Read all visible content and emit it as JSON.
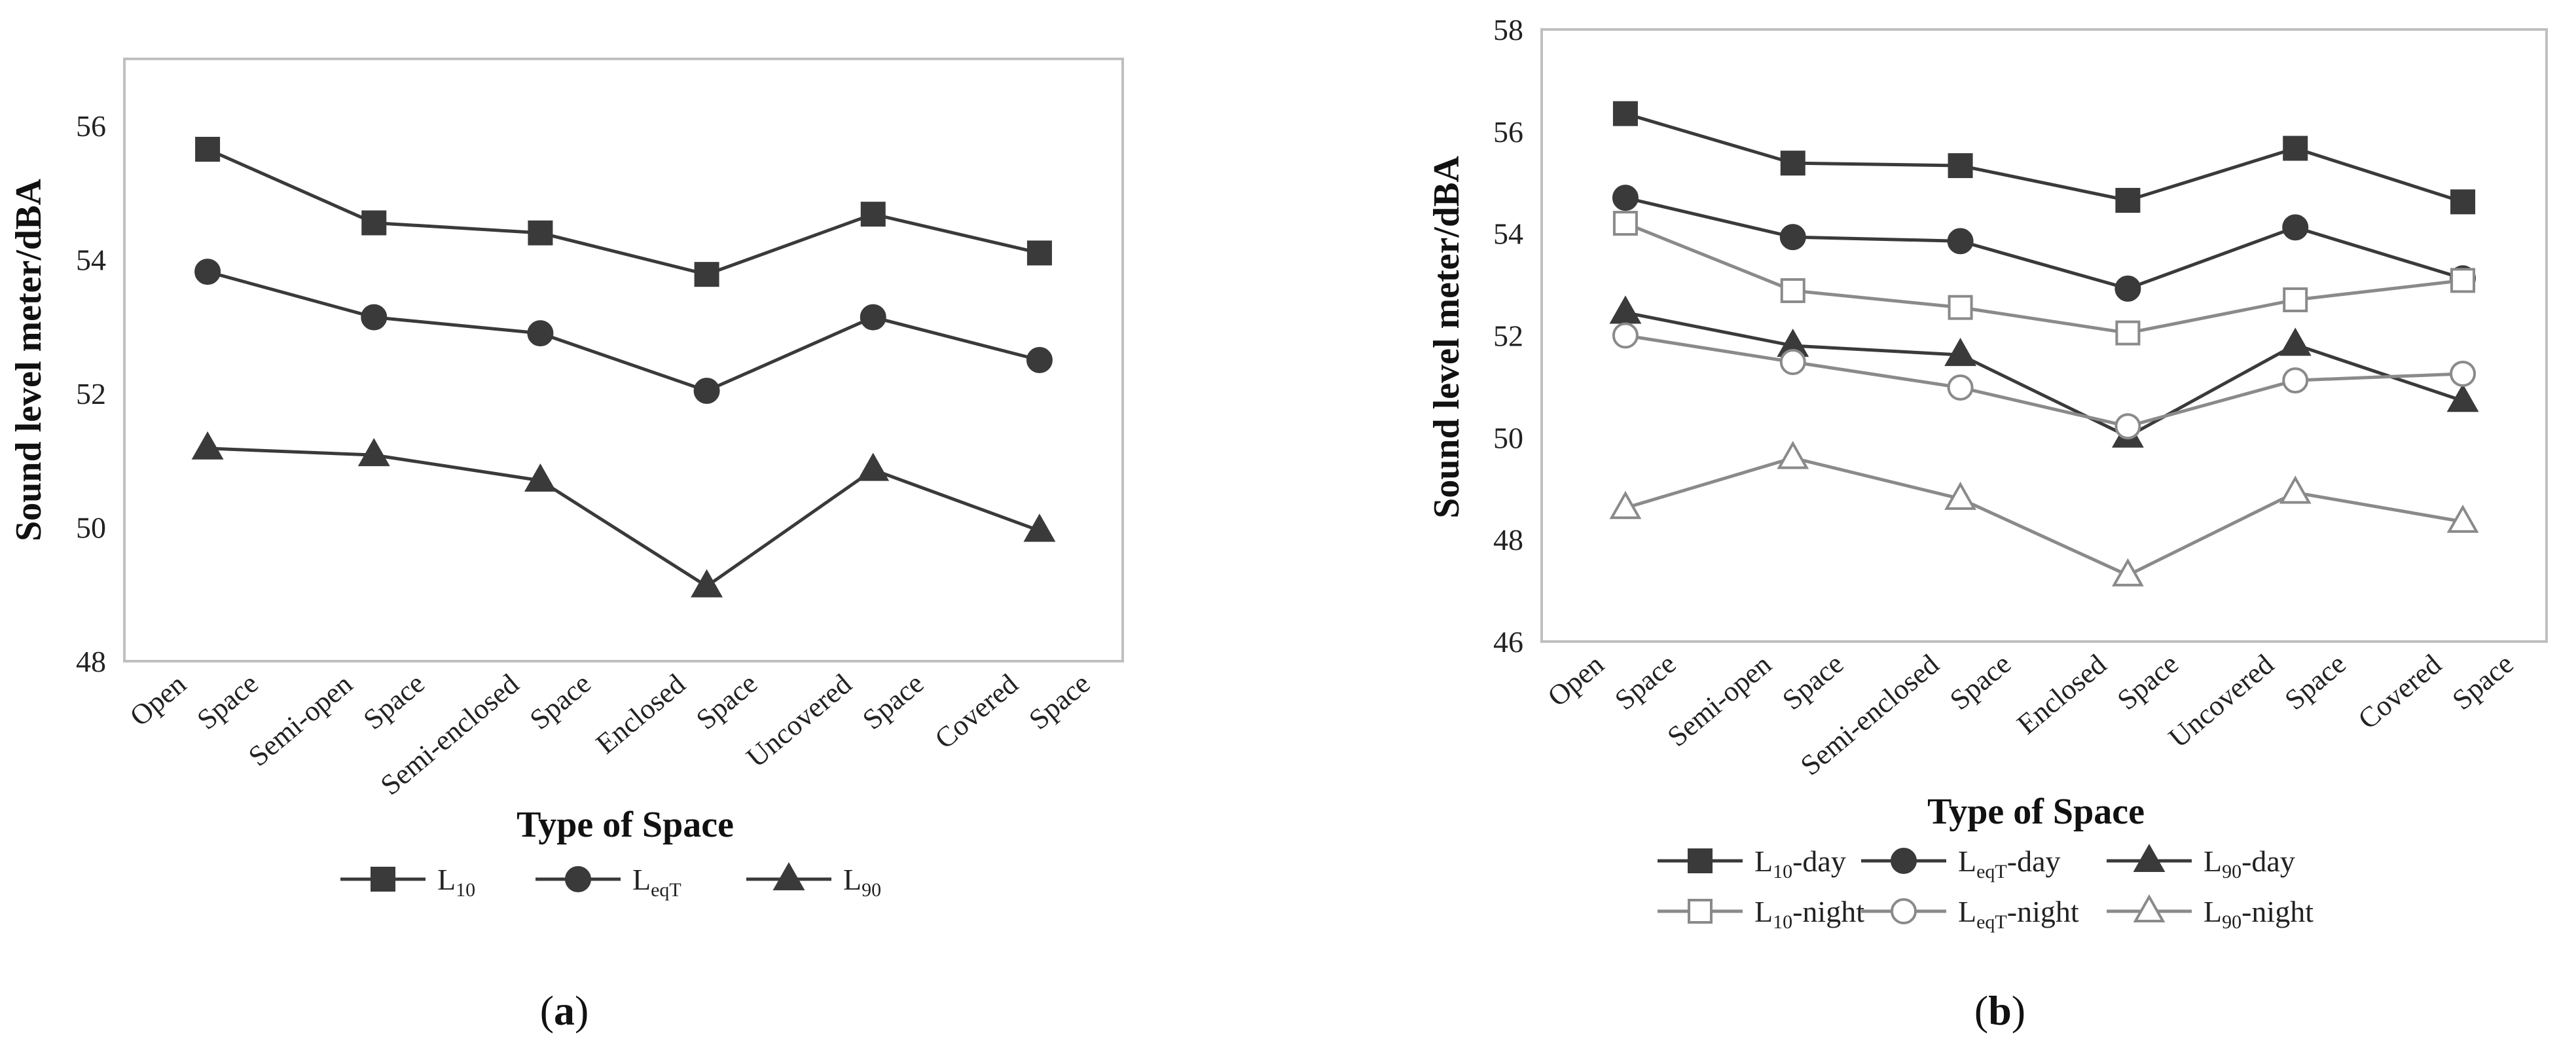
{
  "chart_data": [
    {
      "panel": "a",
      "type": "line",
      "caption": {
        "open": "(",
        "letter": "a",
        "close": ")"
      },
      "title": "",
      "xlabel": "Type of Space",
      "ylabel": "Sound level meter/dBA",
      "ylim": [
        48,
        57
      ],
      "yticks": [
        48,
        50,
        52,
        54,
        56
      ],
      "categories": [
        [
          "Open",
          "Space"
        ],
        [
          "Semi-open",
          "Space"
        ],
        [
          "Semi-enclosed",
          "Space"
        ],
        [
          "Enclosed",
          "Space"
        ],
        [
          "Uncovered",
          "Space"
        ],
        [
          "Covered",
          "Space"
        ]
      ],
      "legend_position": "bottom",
      "series": [
        {
          "name": "L10",
          "base": "L",
          "sub": "10",
          "suffix": "",
          "marker": "square",
          "filled": true,
          "color": "#3a3a3a",
          "values": [
            55.65,
            54.55,
            54.4,
            53.78,
            54.68,
            54.1
          ]
        },
        {
          "name": "LeqT",
          "base": "L",
          "sub": "eqT",
          "suffix": "",
          "marker": "circle",
          "filled": true,
          "color": "#3a3a3a",
          "values": [
            53.82,
            53.14,
            52.9,
            52.04,
            53.14,
            52.5
          ]
        },
        {
          "name": "L90",
          "base": "L",
          "sub": "90",
          "suffix": "",
          "marker": "triangle",
          "filled": true,
          "color": "#3a3a3a",
          "values": [
            51.18,
            51.08,
            50.7,
            49.12,
            50.86,
            49.95
          ]
        }
      ]
    },
    {
      "panel": "b",
      "type": "line",
      "caption": {
        "open": "(",
        "letter": "b",
        "close": ")"
      },
      "title": "",
      "xlabel": "Type of Space",
      "ylabel": "Sound level meter/dBA",
      "ylim": [
        46,
        58
      ],
      "yticks": [
        46,
        48,
        50,
        52,
        54,
        56,
        58
      ],
      "categories": [
        [
          "Open",
          "Space"
        ],
        [
          "Semi-open",
          "Space"
        ],
        [
          "Semi-enclosed",
          "Space"
        ],
        [
          "Enclosed",
          "Space"
        ],
        [
          "Uncovered",
          "Space"
        ],
        [
          "Covered",
          "Space"
        ]
      ],
      "legend_position": "bottom",
      "series": [
        {
          "name": "L10-day",
          "base": "L",
          "sub": "10",
          "suffix": "-day",
          "marker": "square",
          "filled": true,
          "color": "#3a3a3a",
          "values": [
            56.35,
            55.38,
            55.33,
            54.65,
            55.67,
            54.62
          ]
        },
        {
          "name": "LeqT-day",
          "base": "L",
          "sub": "eqT",
          "suffix": "-day",
          "marker": "circle",
          "filled": true,
          "color": "#3a3a3a",
          "values": [
            54.7,
            53.93,
            53.85,
            52.92,
            54.12,
            53.12
          ]
        },
        {
          "name": "L90-day",
          "base": "L",
          "sub": "90",
          "suffix": "-day",
          "marker": "triangle",
          "filled": true,
          "color": "#3a3a3a",
          "values": [
            52.45,
            51.8,
            51.62,
            50.02,
            51.82,
            50.72
          ]
        },
        {
          "name": "L10-night",
          "base": "L",
          "sub": "10",
          "suffix": "-night",
          "marker": "square",
          "filled": false,
          "color": "#8a8a8a",
          "values": [
            54.2,
            52.88,
            52.55,
            52.05,
            52.7,
            53.08
          ]
        },
        {
          "name": "LeqT-night",
          "base": "L",
          "sub": "eqT",
          "suffix": "-night",
          "marker": "circle",
          "filled": false,
          "color": "#8a8a8a",
          "values": [
            52.0,
            51.48,
            50.98,
            50.22,
            51.12,
            51.25
          ]
        },
        {
          "name": "L90-night",
          "base": "L",
          "sub": "90",
          "suffix": "-night",
          "marker": "triangle",
          "filled": false,
          "color": "#8a8a8a",
          "values": [
            48.62,
            49.6,
            48.8,
            47.3,
            48.92,
            48.35
          ]
        }
      ]
    }
  ]
}
